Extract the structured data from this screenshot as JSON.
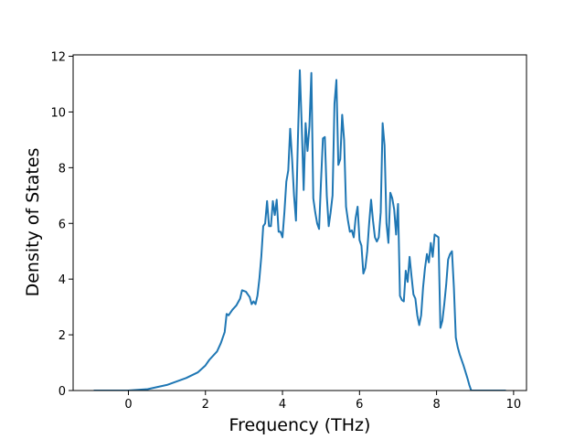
{
  "chart_data": {
    "type": "line",
    "x_label": "Frequency (THz)",
    "y_label": "Density of States",
    "xlim": [
      -1.435,
      10.335
    ],
    "ylim": [
      0,
      12.05
    ],
    "xticks": [
      0,
      2,
      4,
      6,
      8,
      10
    ],
    "yticks": [
      0,
      2,
      4,
      6,
      8,
      10,
      12
    ],
    "grid": false,
    "series": [
      {
        "color": "#1f77b4",
        "x": [
          -0.9,
          0,
          0.5,
          1,
          1.5,
          1.8,
          2,
          2.1,
          2.3,
          2.4,
          2.5,
          2.55,
          2.6,
          2.7,
          2.8,
          2.9,
          2.95,
          3.05,
          3.1,
          3.15,
          3.2,
          3.25,
          3.3,
          3.35,
          3.4,
          3.45,
          3.5,
          3.55,
          3.6,
          3.65,
          3.7,
          3.75,
          3.8,
          3.85,
          3.9,
          3.95,
          4.0,
          4.05,
          4.1,
          4.15,
          4.2,
          4.25,
          4.3,
          4.35,
          4.4,
          4.45,
          4.5,
          4.55,
          4.6,
          4.65,
          4.7,
          4.75,
          4.8,
          4.85,
          4.9,
          4.95,
          5.0,
          5.05,
          5.1,
          5.15,
          5.2,
          5.25,
          5.3,
          5.35,
          5.4,
          5.45,
          5.5,
          5.55,
          5.6,
          5.65,
          5.7,
          5.75,
          5.8,
          5.85,
          5.9,
          5.95,
          6.0,
          6.05,
          6.1,
          6.15,
          6.2,
          6.25,
          6.3,
          6.35,
          6.4,
          6.45,
          6.5,
          6.55,
          6.6,
          6.65,
          6.7,
          6.75,
          6.8,
          6.85,
          6.9,
          6.95,
          7.0,
          7.05,
          7.1,
          7.15,
          7.2,
          7.25,
          7.3,
          7.35,
          7.4,
          7.45,
          7.5,
          7.55,
          7.6,
          7.65,
          7.7,
          7.75,
          7.8,
          7.85,
          7.9,
          7.95,
          8.0,
          8.05,
          8.1,
          8.15,
          8.2,
          8.25,
          8.3,
          8.35,
          8.4,
          8.45,
          8.5,
          8.55,
          8.6,
          8.7,
          8.8,
          8.85,
          8.9,
          9.8
        ],
        "values": [
          0,
          0,
          0.05,
          0.2,
          0.45,
          0.65,
          0.9,
          1.1,
          1.4,
          1.7,
          2.1,
          2.75,
          2.7,
          2.9,
          3.05,
          3.3,
          3.6,
          3.55,
          3.45,
          3.35,
          3.1,
          3.2,
          3.1,
          3.4,
          4.0,
          4.8,
          5.9,
          6.0,
          6.8,
          5.9,
          5.9,
          6.8,
          6.3,
          6.85,
          5.7,
          5.7,
          5.5,
          6.4,
          7.5,
          7.9,
          9.4,
          8.3,
          7.0,
          6.1,
          9.0,
          11.5,
          9.5,
          7.2,
          9.6,
          8.6,
          9.5,
          11.4,
          6.9,
          6.4,
          6.0,
          5.8,
          7.5,
          9.05,
          9.1,
          7.0,
          5.9,
          6.4,
          7.0,
          10.3,
          11.15,
          8.1,
          8.3,
          9.9,
          9.0,
          6.6,
          6.1,
          5.7,
          5.75,
          5.5,
          6.2,
          6.6,
          5.4,
          5.2,
          4.2,
          4.4,
          5.0,
          6.0,
          6.85,
          6.1,
          5.5,
          5.35,
          5.5,
          6.4,
          9.6,
          8.8,
          6.0,
          5.3,
          7.1,
          6.9,
          6.5,
          5.6,
          6.7,
          3.4,
          3.25,
          3.2,
          4.3,
          3.9,
          4.8,
          4.1,
          3.45,
          3.3,
          2.7,
          2.35,
          2.7,
          3.7,
          4.4,
          4.9,
          4.6,
          5.3,
          4.8,
          5.6,
          5.55,
          5.5,
          2.25,
          2.5,
          3.1,
          3.8,
          4.7,
          4.9,
          5.0,
          3.7,
          1.9,
          1.55,
          1.3,
          0.9,
          0.45,
          0.2,
          0,
          0
        ]
      }
    ]
  }
}
